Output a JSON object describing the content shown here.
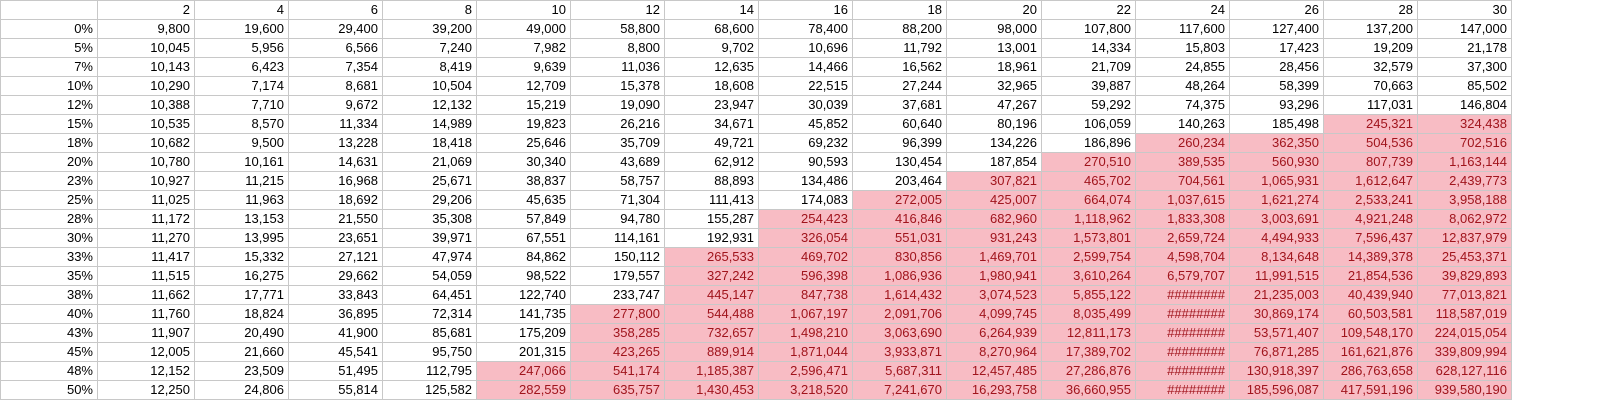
{
  "spreadsheet": {
    "corner": "",
    "col_headers": [
      "2",
      "4",
      "6",
      "8",
      "10",
      "12",
      "14",
      "16",
      "18",
      "20",
      "22",
      "24",
      "26",
      "28",
      "30"
    ],
    "highlight_color": "#f8bcc4",
    "highlight_text_color": "#a0141c",
    "rows": [
      {
        "label": "0%",
        "cells": [
          "9,800",
          "19,600",
          "29,400",
          "39,200",
          "49,000",
          "58,800",
          "68,600",
          "78,400",
          "88,200",
          "98,000",
          "107,800",
          "117,600",
          "127,400",
          "137,200",
          "147,000"
        ],
        "first_highlight_col": 99
      },
      {
        "label": "5%",
        "cells": [
          "10,045",
          "5,956",
          "6,566",
          "7,240",
          "7,982",
          "8,800",
          "9,702",
          "10,696",
          "11,792",
          "13,001",
          "14,334",
          "15,803",
          "17,423",
          "19,209",
          "21,178"
        ],
        "first_highlight_col": 99
      },
      {
        "label": "7%",
        "cells": [
          "10,143",
          "6,423",
          "7,354",
          "8,419",
          "9,639",
          "11,036",
          "12,635",
          "14,466",
          "16,562",
          "18,961",
          "21,709",
          "24,855",
          "28,456",
          "32,579",
          "37,300"
        ],
        "first_highlight_col": 99
      },
      {
        "label": "10%",
        "cells": [
          "10,290",
          "7,174",
          "8,681",
          "10,504",
          "12,709",
          "15,378",
          "18,608",
          "22,515",
          "27,244",
          "32,965",
          "39,887",
          "48,264",
          "58,399",
          "70,663",
          "85,502"
        ],
        "first_highlight_col": 99
      },
      {
        "label": "12%",
        "cells": [
          "10,388",
          "7,710",
          "9,672",
          "12,132",
          "15,219",
          "19,090",
          "23,947",
          "30,039",
          "37,681",
          "47,267",
          "59,292",
          "74,375",
          "93,296",
          "117,031",
          "146,804"
        ],
        "first_highlight_col": 99
      },
      {
        "label": "15%",
        "cells": [
          "10,535",
          "8,570",
          "11,334",
          "14,989",
          "19,823",
          "26,216",
          "34,671",
          "45,852",
          "60,640",
          "80,196",
          "106,059",
          "140,263",
          "185,498",
          "245,321",
          "324,438"
        ],
        "first_highlight_col": 13
      },
      {
        "label": "18%",
        "cells": [
          "10,682",
          "9,500",
          "13,228",
          "18,418",
          "25,646",
          "35,709",
          "49,721",
          "69,232",
          "96,399",
          "134,226",
          "186,896",
          "260,234",
          "362,350",
          "504,536",
          "702,516"
        ],
        "first_highlight_col": 11
      },
      {
        "label": "20%",
        "cells": [
          "10,780",
          "10,161",
          "14,631",
          "21,069",
          "30,340",
          "43,689",
          "62,912",
          "90,593",
          "130,454",
          "187,854",
          "270,510",
          "389,535",
          "560,930",
          "807,739",
          "1,163,144"
        ],
        "first_highlight_col": 10
      },
      {
        "label": "23%",
        "cells": [
          "10,927",
          "11,215",
          "16,968",
          "25,671",
          "38,837",
          "58,757",
          "88,893",
          "134,486",
          "203,464",
          "307,821",
          "465,702",
          "704,561",
          "1,065,931",
          "1,612,647",
          "2,439,773"
        ],
        "first_highlight_col": 9
      },
      {
        "label": "25%",
        "cells": [
          "11,025",
          "11,963",
          "18,692",
          "29,206",
          "45,635",
          "71,304",
          "111,413",
          "174,083",
          "272,005",
          "425,007",
          "664,074",
          "1,037,615",
          "1,621,274",
          "2,533,241",
          "3,958,188"
        ],
        "first_highlight_col": 8
      },
      {
        "label": "28%",
        "cells": [
          "11,172",
          "13,153",
          "21,550",
          "35,308",
          "57,849",
          "94,780",
          "155,287",
          "254,423",
          "416,846",
          "682,960",
          "1,118,962",
          "1,833,308",
          "3,003,691",
          "4,921,248",
          "8,062,972"
        ],
        "first_highlight_col": 7
      },
      {
        "label": "30%",
        "cells": [
          "11,270",
          "13,995",
          "23,651",
          "39,971",
          "67,551",
          "114,161",
          "192,931",
          "326,054",
          "551,031",
          "931,243",
          "1,573,801",
          "2,659,724",
          "4,494,933",
          "7,596,437",
          "12,837,979"
        ],
        "first_highlight_col": 7
      },
      {
        "label": "33%",
        "cells": [
          "11,417",
          "15,332",
          "27,121",
          "47,974",
          "84,862",
          "150,112",
          "265,533",
          "469,702",
          "830,856",
          "1,469,701",
          "2,599,754",
          "4,598,704",
          "8,134,648",
          "14,389,378",
          "25,453,371"
        ],
        "first_highlight_col": 6
      },
      {
        "label": "35%",
        "cells": [
          "11,515",
          "16,275",
          "29,662",
          "54,059",
          "98,522",
          "179,557",
          "327,242",
          "596,398",
          "1,086,936",
          "1,980,941",
          "3,610,264",
          "6,579,707",
          "11,991,515",
          "21,854,536",
          "39,829,893"
        ],
        "first_highlight_col": 6
      },
      {
        "label": "38%",
        "cells": [
          "11,662",
          "17,771",
          "33,843",
          "64,451",
          "122,740",
          "233,747",
          "445,147",
          "847,738",
          "1,614,432",
          "3,074,523",
          "5,855,122",
          "########",
          "21,235,003",
          "40,439,940",
          "77,013,821"
        ],
        "first_highlight_col": 6
      },
      {
        "label": "40%",
        "cells": [
          "11,760",
          "18,824",
          "36,895",
          "72,314",
          "141,735",
          "277,800",
          "544,488",
          "1,067,197",
          "2,091,706",
          "4,099,745",
          "8,035,499",
          "########",
          "30,869,174",
          "60,503,581",
          "118,587,019"
        ],
        "first_highlight_col": 5
      },
      {
        "label": "43%",
        "cells": [
          "11,907",
          "20,490",
          "41,900",
          "85,681",
          "175,209",
          "358,285",
          "732,657",
          "1,498,210",
          "3,063,690",
          "6,264,939",
          "12,811,173",
          "########",
          "53,571,407",
          "109,548,170",
          "224,015,054"
        ],
        "first_highlight_col": 5
      },
      {
        "label": "45%",
        "cells": [
          "12,005",
          "21,660",
          "45,541",
          "95,750",
          "201,315",
          "423,265",
          "889,914",
          "1,871,044",
          "3,933,871",
          "8,270,964",
          "17,389,702",
          "########",
          "76,871,285",
          "161,621,876",
          "339,809,994"
        ],
        "first_highlight_col": 5
      },
      {
        "label": "48%",
        "cells": [
          "12,152",
          "23,509",
          "51,495",
          "112,795",
          "247,066",
          "541,174",
          "1,185,387",
          "2,596,471",
          "5,687,311",
          "12,457,485",
          "27,286,876",
          "########",
          "130,918,397",
          "286,763,658",
          "628,127,116"
        ],
        "first_highlight_col": 4
      },
      {
        "label": "50%",
        "cells": [
          "12,250",
          "24,806",
          "55,814",
          "125,582",
          "282,559",
          "635,757",
          "1,430,453",
          "3,218,520",
          "7,241,670",
          "16,293,758",
          "36,660,955",
          "########",
          "185,596,087",
          "417,591,196",
          "939,580,190"
        ],
        "first_highlight_col": 4
      }
    ]
  }
}
